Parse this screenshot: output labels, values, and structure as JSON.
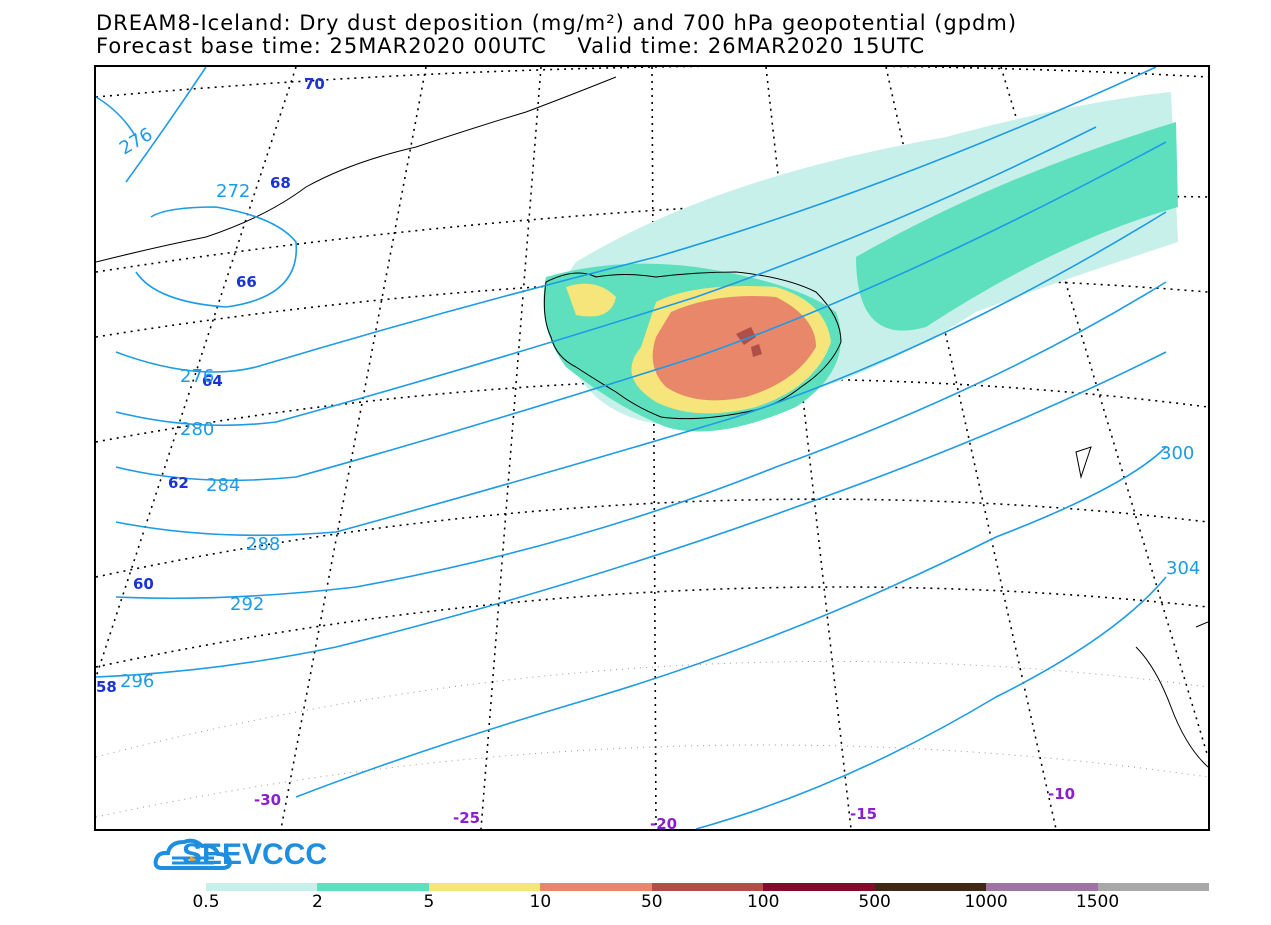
{
  "title": {
    "line1": "DREAM8-Iceland: Dry dust deposition (mg/m²) and 700 hPa geopotential (gpdm)",
    "line2": "Forecast base time: 25MAR2020 00UTC    Valid time: 26MAR2020 15UTC"
  },
  "map": {
    "latitude_labels": [
      "70",
      "68",
      "66",
      "64",
      "62",
      "60",
      "58"
    ],
    "longitude_labels": [
      "-30",
      "-25",
      "-20",
      "-15",
      "-10"
    ],
    "isoline_labels": [
      "276",
      "272",
      "276",
      "280",
      "284",
      "288",
      "292",
      "296",
      "300",
      "304"
    ],
    "isoline_color": "#1e9be6",
    "region": "Iceland"
  },
  "logo": {
    "text": "SEEVCCC",
    "icon": "cloud-logo-icon"
  },
  "colorbar": {
    "labels": [
      "0.5",
      "2",
      "5",
      "10",
      "50",
      "100",
      "500",
      "1000",
      "1500"
    ],
    "colors": [
      "#c8f0ea",
      "#5ee0be",
      "#f5e57a",
      "#e8876a",
      "#b04e48",
      "#820c2c",
      "#3e2818",
      "#9e74a4",
      "#a8a8a8"
    ]
  }
}
